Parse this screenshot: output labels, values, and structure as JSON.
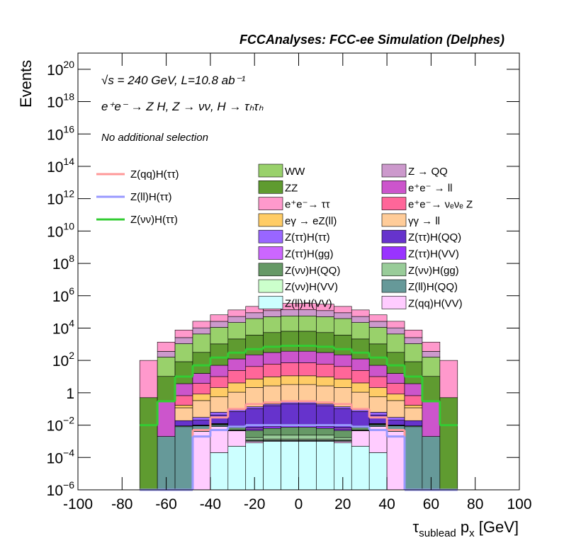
{
  "chart_data": {
    "type": "stacked_histogram",
    "title": "FCCAnalyses: FCC-ee Simulation (Delphes)",
    "annotations": [
      "√s = 240 GeV, L=10.8 ab⁻¹",
      "e⁺e⁻ → Z H, Z → νν, H → τₕτₕ",
      "No additional selection"
    ],
    "y_label": "Events",
    "x_label": [
      "τ",
      "sublead",
      " p",
      "x",
      " [GeV]"
    ],
    "log_y": true,
    "xlim": [
      -100,
      100
    ],
    "ylim": [
      1e-06,
      1e+21
    ],
    "xticks": [
      -100,
      -80,
      -60,
      -40,
      -20,
      0,
      20,
      40,
      60,
      80,
      100
    ],
    "yticks": [
      {
        "value": 1e-06,
        "label": "10",
        "exp": "−6"
      },
      {
        "value": 0.0001,
        "label": "10",
        "exp": "−4"
      },
      {
        "value": 0.01,
        "label": "10",
        "exp": "−2"
      },
      1,
      {
        "value": 100.0,
        "label": "10",
        "exp": "2"
      },
      {
        "value": 10000.0,
        "label": "10",
        "exp": "4"
      },
      {
        "value": 1000000.0,
        "label": "10",
        "exp": "6"
      },
      {
        "value": 100000000.0,
        "label": "10",
        "exp": "8"
      },
      {
        "value": 10000000000.0,
        "label": "10",
        "exp": "10"
      },
      {
        "value": 1000000000000.0,
        "label": "10",
        "exp": "12"
      },
      {
        "value": 100000000000000.0,
        "label": "10",
        "exp": "14"
      },
      {
        "value": 1e+16,
        "label": "10",
        "exp": "16"
      },
      {
        "value": 1e+18,
        "label": "10",
        "exp": "18"
      },
      {
        "value": 1e+20,
        "label": "10",
        "exp": "20"
      }
    ],
    "bins": [
      -72,
      -64,
      -56,
      -48,
      -40,
      -32,
      -24,
      -16,
      -8,
      0,
      8,
      16,
      24,
      32,
      40,
      48,
      56,
      64,
      72
    ],
    "series": [
      {
        "name": "Z(ll)H(VV)",
        "color": "#ccffff",
        "values": [
          0,
          0,
          0,
          0,
          0.0002,
          0.0005,
          0.0008,
          0.001,
          0.001,
          0.001,
          0.001,
          0.0008,
          0.0005,
          0.0002,
          0,
          0,
          0,
          0
        ]
      },
      {
        "name": "Z(qq)H(VV)",
        "color": "#ffccff",
        "values": [
          0,
          0,
          0,
          0.004,
          0.008,
          0.004,
          0.0002,
          0.0001,
          0.0001,
          0.0001,
          0.0001,
          0.0002,
          0.004,
          0.008,
          0.004,
          0,
          0,
          0
        ]
      },
      {
        "name": "Z(ll)H(QQ)",
        "color": "#669999",
        "values": [
          0,
          0.002,
          0.008,
          0.005,
          0.002,
          0.0001,
          0.0001,
          0.0001,
          0.0001,
          0.0001,
          0.0001,
          0.0001,
          0.0001,
          0.002,
          0.005,
          0.008,
          0.002,
          0
        ]
      },
      {
        "name": "Z(νν)H(VV)",
        "color": "#ccffcc",
        "values": [
          0,
          0,
          0,
          0.0001,
          0.0001,
          0.0001,
          0.0001,
          0.0002,
          0.0002,
          0.0002,
          0.0002,
          0.0001,
          0.0001,
          0.0001,
          0.0001,
          0,
          0,
          0
        ]
      },
      {
        "name": "Z(νν)H(gg)",
        "color": "#99cc99",
        "values": [
          0,
          0,
          0,
          0.0001,
          0.0002,
          0.0003,
          0.0005,
          0.001,
          0.001,
          0.001,
          0.001,
          0.0005,
          0.0003,
          0.0002,
          0.0001,
          0,
          0,
          0
        ]
      },
      {
        "name": "Z(νν)H(QQ)",
        "color": "#669966",
        "values": [
          0,
          0,
          0.001,
          0.0005,
          0.001,
          0.002,
          0.003,
          0.004,
          0.005,
          0.005,
          0.004,
          0.003,
          0.002,
          0.001,
          0.0005,
          0.001,
          0,
          0
        ]
      },
      {
        "name": "Z(ττ)H(VV)",
        "color": "#9933ff",
        "values": [
          0,
          0,
          0,
          0.0002,
          0.0005,
          0.001,
          0.001,
          0.002,
          0.002,
          0.002,
          0.002,
          0.001,
          0.001,
          0.0005,
          0.0002,
          0,
          0,
          0
        ]
      },
      {
        "name": "Z(ττ)H(gg)",
        "color": "#cc66ff",
        "values": [
          0,
          0,
          0,
          0.0002,
          0.0005,
          0.001,
          0.001,
          0.002,
          0.002,
          0.002,
          0.002,
          0.001,
          0.001,
          0.0005,
          0.0002,
          0,
          0,
          0
        ]
      },
      {
        "name": "Z(ττ)H(QQ)",
        "color": "#6633cc",
        "values": [
          0,
          0,
          0.01,
          0.01,
          0.03,
          0.06,
          0.1,
          0.15,
          0.2,
          0.2,
          0.15,
          0.1,
          0.06,
          0.03,
          0.01,
          0.01,
          0,
          0
        ]
      },
      {
        "name": "Z(ττ)H(ττ)",
        "color": "#9966ff",
        "values": [
          0,
          0,
          0,
          0.01,
          0.02,
          0.02,
          0.03,
          0.04,
          0.05,
          0.05,
          0.04,
          0.03,
          0.02,
          0.02,
          0.01,
          0,
          0,
          0
        ]
      },
      {
        "name": "γγ → ll",
        "color": "#ffcc99",
        "values": [
          0,
          0,
          0.1,
          0.3,
          0.5,
          1,
          2,
          2.5,
          3,
          3,
          2.5,
          2,
          1,
          0.5,
          0.3,
          0.1,
          0,
          0
        ]
      },
      {
        "name": "eγ → eZ(ll)",
        "color": "#ffcc66",
        "values": [
          0,
          0,
          0.05,
          0.5,
          1.5,
          3,
          5,
          7,
          8,
          8,
          7,
          5,
          3,
          1.5,
          0.5,
          0.05,
          0,
          0
        ]
      },
      {
        "name": "e⁺e⁻→ νₑνₑ Z",
        "color": "#ff6699",
        "values": [
          0,
          0,
          0.5,
          3,
          8,
          20,
          35,
          50,
          60,
          60,
          50,
          35,
          20,
          8,
          3,
          0.5,
          0,
          0
        ]
      },
      {
        "name": "e⁺e⁻ → ll",
        "color": "#cc55cc",
        "values": [
          0,
          0.3,
          3,
          12,
          40,
          100,
          180,
          250,
          300,
          300,
          250,
          180,
          100,
          40,
          12,
          3,
          0.3,
          0
        ]
      },
      {
        "name": "ZZ",
        "color": "#5f9b30",
        "values": [
          0.5,
          10,
          80,
          300,
          1000,
          2000,
          3500,
          5000,
          6000,
          6000,
          5000,
          3500,
          2000,
          1000,
          300,
          80,
          10,
          0.5
        ]
      },
      {
        "name": "WW",
        "color": "#99d16b",
        "values": [
          0,
          150,
          1000,
          4000,
          10000,
          20000,
          35000,
          45000,
          50000,
          50000,
          45000,
          35000,
          20000,
          10000,
          4000,
          1000,
          150,
          0
        ]
      },
      {
        "name": "Z → QQ",
        "color": "#cc99cc",
        "values": [
          0,
          200,
          1500,
          6000,
          15000,
          30000,
          50000,
          70000,
          80000,
          80000,
          70000,
          50000,
          30000,
          15000,
          6000,
          1500,
          200,
          0
        ]
      },
      {
        "name": "e⁺e⁻→ ττ",
        "color": "#ff99cc",
        "values": [
          100,
          1000,
          5000,
          16000,
          40000,
          80000,
          130000,
          180000,
          200000,
          200000,
          180000,
          130000,
          80000,
          40000,
          16000,
          5000,
          1000,
          100
        ]
      }
    ],
    "lines": [
      {
        "name": "Z(qq)H(ττ)",
        "color": "#ff9999",
        "values": [
          0,
          0,
          0,
          0.005,
          0.03,
          0.1,
          0.2,
          0.25,
          0.3,
          0.3,
          0.25,
          0.2,
          0.1,
          0.03,
          0.005,
          0,
          0,
          0
        ]
      },
      {
        "name": "Z(ll)H(ττ)",
        "color": "#9999ff",
        "values": [
          0,
          0,
          0,
          0.002,
          0.005,
          0.008,
          0.01,
          0.01,
          0.01,
          0.01,
          0.01,
          0.01,
          0.008,
          0.005,
          0.002,
          0,
          0,
          0
        ]
      },
      {
        "name": "Z(νν)H(ττ)",
        "color": "#33cc33",
        "values": [
          0.01,
          0.3,
          10,
          50,
          150,
          300,
          500,
          700,
          800,
          800,
          700,
          500,
          300,
          150,
          50,
          10,
          0.3,
          0.01
        ]
      }
    ]
  }
}
